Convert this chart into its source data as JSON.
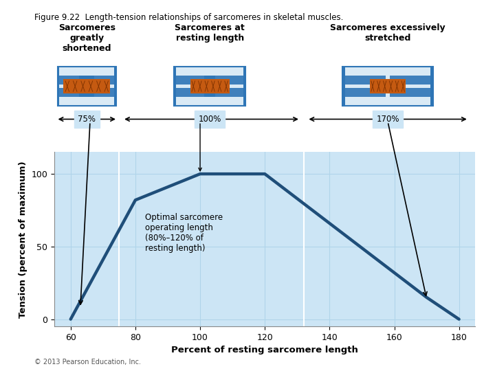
{
  "title": "Figure 9.22  Length-tension relationships of sarcomeres in skeletal muscles.",
  "xlabel": "Percent of resting sarcomere length",
  "ylabel": "Tension (percent of maximum)",
  "bg_color": "#cce5f5",
  "line_color": "#1f4e79",
  "line_width": 3.2,
  "curve_x": [
    60,
    80,
    100,
    120,
    170,
    180
  ],
  "curve_y": [
    0,
    82,
    100,
    100,
    15,
    0
  ],
  "xlim": [
    55,
    185
  ],
  "ylim": [
    -5,
    115
  ],
  "xticks": [
    60,
    80,
    100,
    120,
    140,
    160,
    180
  ],
  "yticks": [
    0,
    50,
    100
  ],
  "grid_color": "#b0d4ea",
  "vline1_x": 75,
  "vline2_x": 132,
  "section1_label": "Sarcomeres\ngreatly\nshortened",
  "section2_label": "Sarcomeres at\nresting length",
  "section3_label": "Sarcomeres excessively\nstretched",
  "annot_text": "Optimal sarcomere\noperating length\n(80%–120% of\nresting length)",
  "footer": "© 2013 Pearson Education, Inc.",
  "sarcomere_color_blue": "#2e75b6",
  "sarcomere_color_orange": "#c55a11",
  "section_bg": "#d9edf7"
}
